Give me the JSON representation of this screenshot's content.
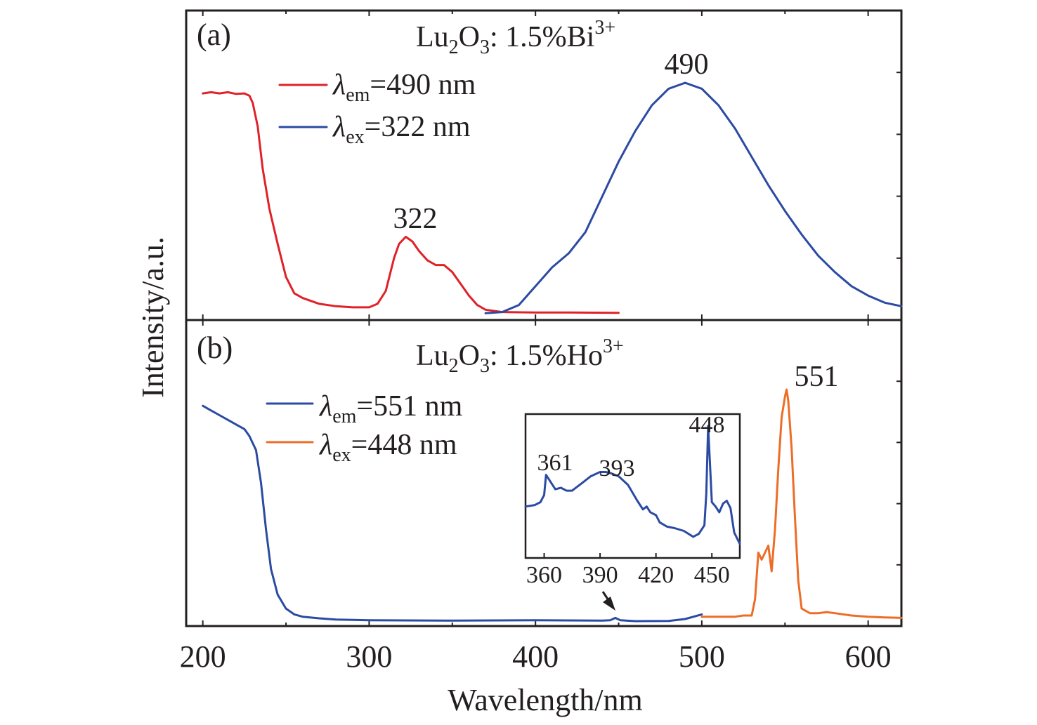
{
  "chart_data": [
    {
      "panel": "(a)",
      "type": "line",
      "title_main": "Lu",
      "title_sub1": "2",
      "title_mid": "O",
      "title_sub2": "3",
      "title_tail": ": 1.5%Bi",
      "title_sup": "3+",
      "xlabel": "Wavelength/nm",
      "ylabel": "Intensity/a.u.",
      "xlim": [
        190,
        620
      ],
      "x_ticks": [
        "200",
        "300",
        "400",
        "500",
        "600"
      ],
      "y_ticks_labeled": false,
      "legend_position": "top-left",
      "peak_labels": [
        "322",
        "490"
      ],
      "series": [
        {
          "name_symbol": "λ",
          "name_sub": "em",
          "name_tail": "=490 nm",
          "color": "#e02128",
          "x": [
            200,
            205,
            210,
            215,
            220,
            225,
            228,
            230,
            233,
            236,
            240,
            245,
            250,
            255,
            260,
            270,
            280,
            290,
            300,
            305,
            310,
            315,
            318,
            322,
            326,
            330,
            335,
            340,
            345,
            350,
            355,
            360,
            365,
            370,
            380,
            400,
            420,
            450
          ],
          "y": [
            0.94,
            0.945,
            0.94,
            0.945,
            0.938,
            0.94,
            0.93,
            0.9,
            0.8,
            0.62,
            0.45,
            0.3,
            0.16,
            0.09,
            0.07,
            0.045,
            0.035,
            0.03,
            0.03,
            0.045,
            0.1,
            0.24,
            0.3,
            0.33,
            0.31,
            0.27,
            0.23,
            0.21,
            0.21,
            0.18,
            0.13,
            0.08,
            0.04,
            0.02,
            0.01,
            0.008,
            0.008,
            0.007
          ]
        },
        {
          "name_symbol": "λ",
          "name_sub": "ex",
          "name_tail": "=322 nm",
          "color": "#2b4ba3",
          "x": [
            370,
            380,
            390,
            400,
            410,
            420,
            430,
            440,
            450,
            460,
            470,
            480,
            490,
            500,
            510,
            520,
            530,
            540,
            550,
            560,
            570,
            580,
            590,
            600,
            610,
            620
          ],
          "y": [
            0.005,
            0.01,
            0.04,
            0.12,
            0.2,
            0.26,
            0.35,
            0.5,
            0.65,
            0.78,
            0.89,
            0.96,
            0.985,
            0.96,
            0.89,
            0.79,
            0.67,
            0.55,
            0.44,
            0.34,
            0.25,
            0.18,
            0.12,
            0.08,
            0.05,
            0.035
          ]
        }
      ]
    },
    {
      "panel": "(b)",
      "type": "line",
      "title_main": "Lu",
      "title_sub1": "2",
      "title_mid": "O",
      "title_sub2": "3",
      "title_tail": ": 1.5%Ho",
      "title_sup": "3+",
      "xlabel": "Wavelength/nm",
      "ylabel": "Intensity/a.u.",
      "xlim": [
        190,
        620
      ],
      "x_ticks": [
        "200",
        "300",
        "400",
        "500",
        "600"
      ],
      "y_ticks_labeled": false,
      "legend_position": "top-left",
      "peak_labels": [
        "551"
      ],
      "series": [
        {
          "name_symbol": "λ",
          "name_sub": "em",
          "name_tail": "=551 nm",
          "color": "#2b4ba3",
          "x": [
            200,
            205,
            210,
            215,
            220,
            225,
            228,
            232,
            235,
            238,
            241,
            245,
            250,
            255,
            260,
            270,
            280,
            300,
            350,
            400,
            440,
            445,
            448,
            451,
            460,
            480,
            490,
            500
          ],
          "y": [
            0.93,
            0.91,
            0.89,
            0.87,
            0.85,
            0.83,
            0.8,
            0.74,
            0.6,
            0.4,
            0.23,
            0.12,
            0.06,
            0.035,
            0.025,
            0.018,
            0.013,
            0.01,
            0.008,
            0.01,
            0.008,
            0.01,
            0.02,
            0.01,
            0.006,
            0.007,
            0.015,
            0.035
          ]
        },
        {
          "name_symbol": "λ",
          "name_sub": "ex",
          "name_tail": "=448 nm",
          "color": "#ed6d26",
          "x": [
            500,
            510,
            520,
            525,
            530,
            532,
            534,
            536,
            538,
            540,
            542,
            544,
            546,
            548,
            550,
            551,
            552,
            554,
            556,
            558,
            560,
            565,
            570,
            575,
            580,
            590,
            600,
            610,
            620
          ],
          "y": [
            0.025,
            0.025,
            0.025,
            0.03,
            0.03,
            0.1,
            0.3,
            0.27,
            0.3,
            0.33,
            0.22,
            0.4,
            0.66,
            0.88,
            0.97,
            1.0,
            0.95,
            0.75,
            0.45,
            0.18,
            0.06,
            0.04,
            0.04,
            0.045,
            0.04,
            0.03,
            0.025,
            0.022,
            0.02
          ]
        }
      ],
      "inset": {
        "type": "line",
        "xlim": [
          350,
          465
        ],
        "x_ticks": [
          "360",
          "390",
          "420",
          "450"
        ],
        "peak_labels": [
          "361",
          "393",
          "448"
        ],
        "color": "#2b4ba3",
        "x": [
          350,
          355,
          358,
          360,
          361,
          363,
          366,
          369,
          372,
          375,
          380,
          385,
          390,
          393,
          396,
          400,
          405,
          410,
          413,
          415,
          417,
          420,
          422,
          426,
          430,
          435,
          440,
          443,
          446,
          447,
          448,
          449,
          450,
          452,
          454,
          456,
          458,
          460,
          462,
          465
        ],
        "y": [
          0.26,
          0.27,
          0.29,
          0.34,
          0.48,
          0.44,
          0.38,
          0.39,
          0.37,
          0.37,
          0.42,
          0.47,
          0.5,
          0.5,
          0.49,
          0.47,
          0.41,
          0.3,
          0.24,
          0.26,
          0.22,
          0.2,
          0.15,
          0.12,
          0.11,
          0.09,
          0.05,
          0.07,
          0.13,
          0.35,
          0.82,
          0.55,
          0.29,
          0.26,
          0.22,
          0.28,
          0.3,
          0.25,
          0.08,
          0.0
        ]
      }
    }
  ]
}
